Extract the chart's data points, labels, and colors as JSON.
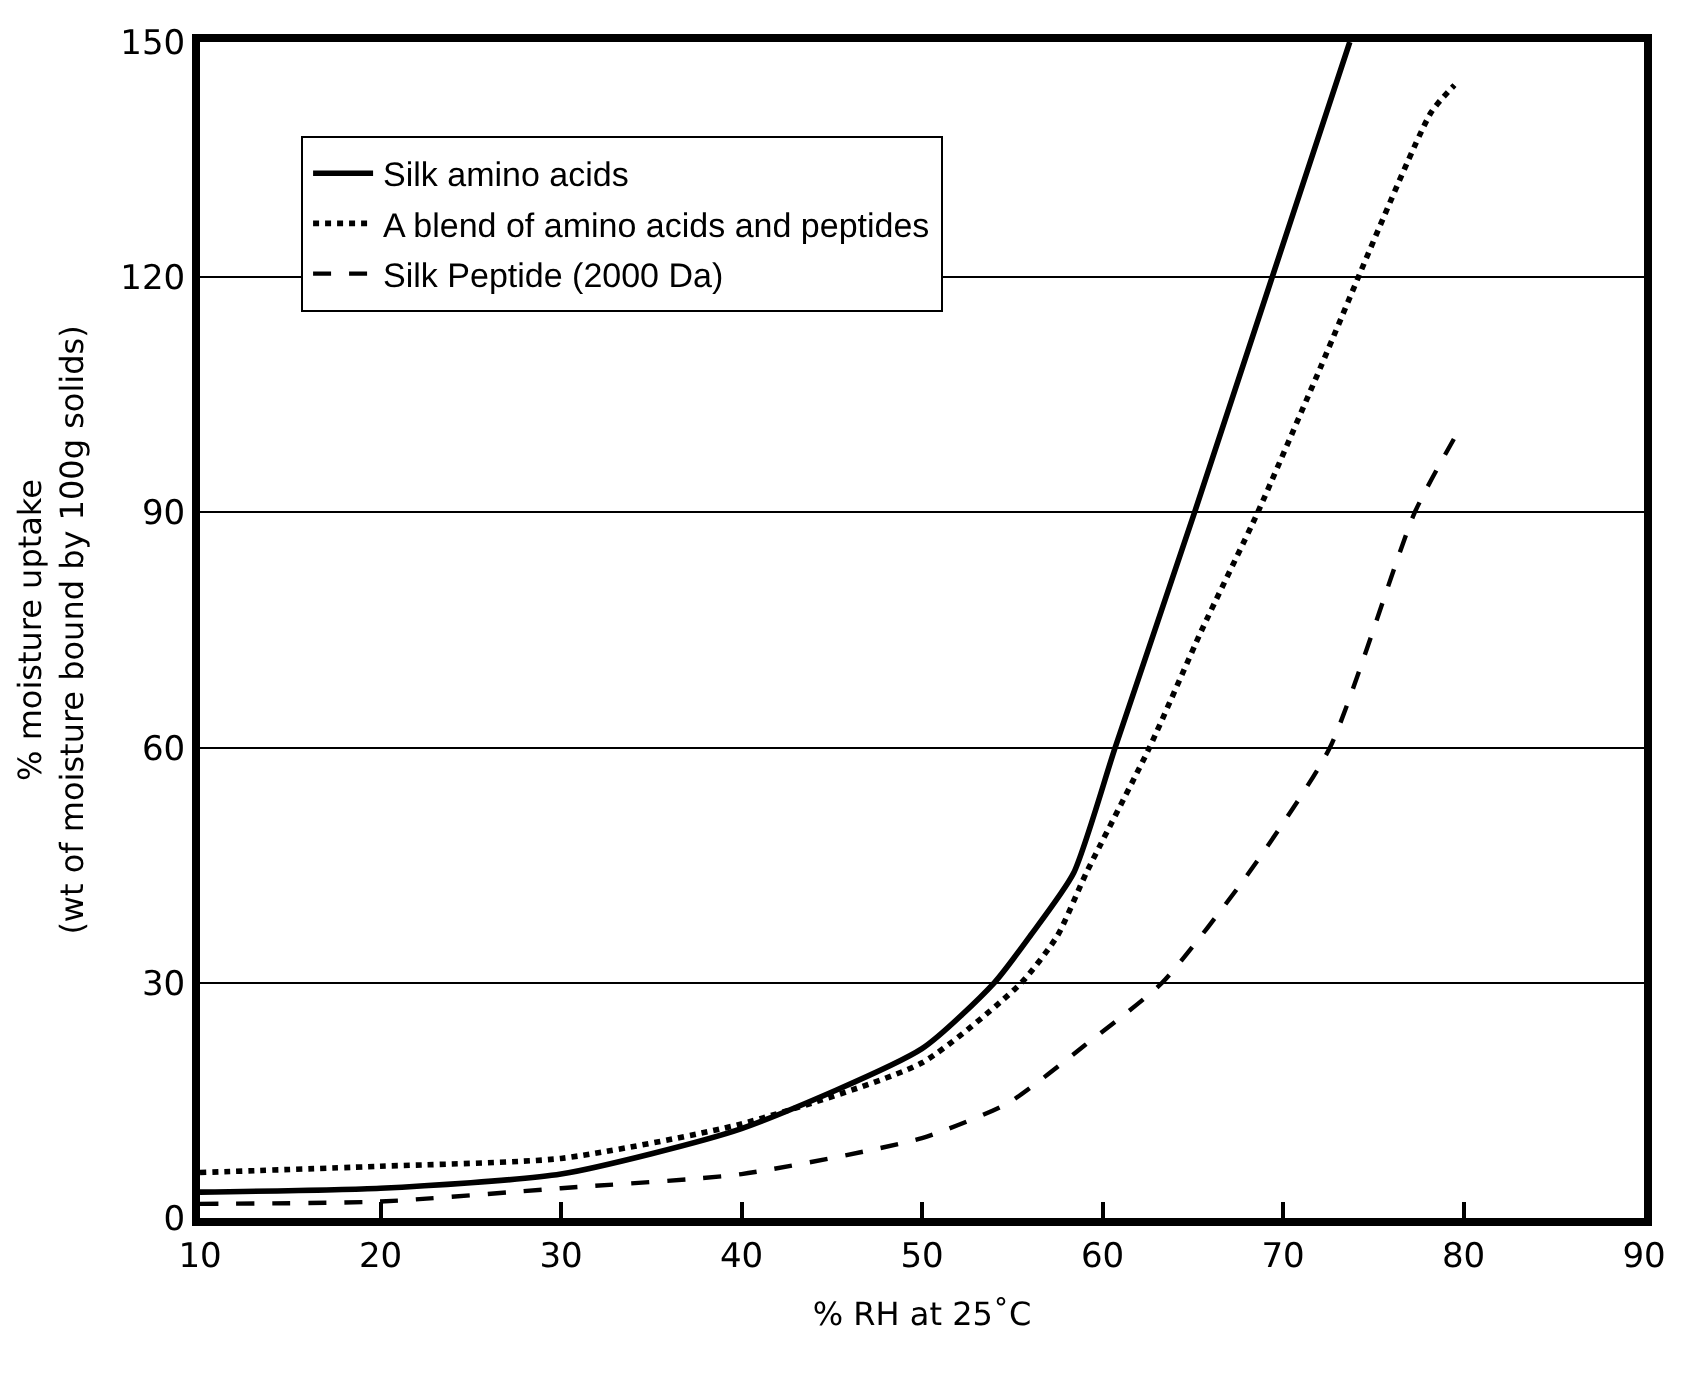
{
  "chart_data": {
    "type": "line",
    "xlabel": "% RH at 25˚C",
    "ylabel": "% moisture uptake\n(wt of moisture bound by 100g solids)",
    "xlim": [
      10,
      90
    ],
    "xticks": [
      10,
      20,
      30,
      40,
      50,
      60,
      70,
      80,
      90
    ],
    "ylim": [
      0,
      150
    ],
    "yticks": [
      0,
      30,
      60,
      90,
      120,
      150
    ],
    "grid": "y",
    "legend": "top",
    "marker": "none",
    "series": [
      {
        "name": "Silk amino acids",
        "color": "#000000",
        "line_style": "solid",
        "x": [
          10,
          20,
          30,
          40,
          50,
          54,
          56,
          58.4,
          60.7,
          65.1,
          73.7
        ],
        "values": [
          3.3,
          3.8,
          5.6,
          11.4,
          21.6,
          30,
          36,
          44,
          60,
          90,
          150
        ]
      },
      {
        "name": "A blend of amino acids and peptides",
        "color": "#000000",
        "line_style": "dotted",
        "x": [
          10,
          20,
          30,
          40,
          50,
          55.5,
          57.5,
          59.1,
          62.6,
          65.5,
          68.6,
          71.8,
          78.2,
          79.5
        ],
        "values": [
          5.8,
          6.6,
          7.6,
          12,
          19.8,
          30,
          36,
          44,
          60,
          75,
          90,
          107,
          141,
          144.5
        ]
      },
      {
        "name": "Silk Peptide (2000 Da)",
        "color": "#000000",
        "line_style": "dashed",
        "x": [
          10,
          20,
          30,
          40,
          50,
          54.8,
          59,
          63.3,
          68.1,
          72.6,
          77.3,
          79.5
        ],
        "values": [
          1.8,
          2.1,
          3.8,
          5.6,
          10.2,
          14.7,
          22,
          30,
          44,
          60,
          90,
          99.5
        ]
      }
    ]
  }
}
